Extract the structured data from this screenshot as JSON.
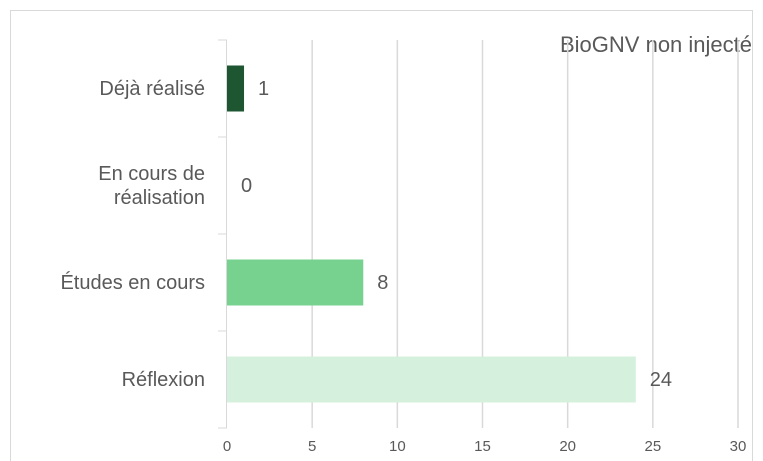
{
  "chart_data": {
    "type": "barh",
    "title": "BioGNV non injecté",
    "categories": [
      "Déjà réalisé",
      "En cours de réalisation",
      "Études en cours",
      "Réflexion"
    ],
    "values": [
      1,
      0,
      8,
      24
    ],
    "colors": [
      "#1e5631",
      "#2e8b57",
      "#77d18f",
      "#d5f0dc"
    ],
    "xlim": [
      0,
      30
    ],
    "xticks": [
      0,
      5,
      10,
      15,
      20,
      25,
      30
    ],
    "grid": true
  }
}
